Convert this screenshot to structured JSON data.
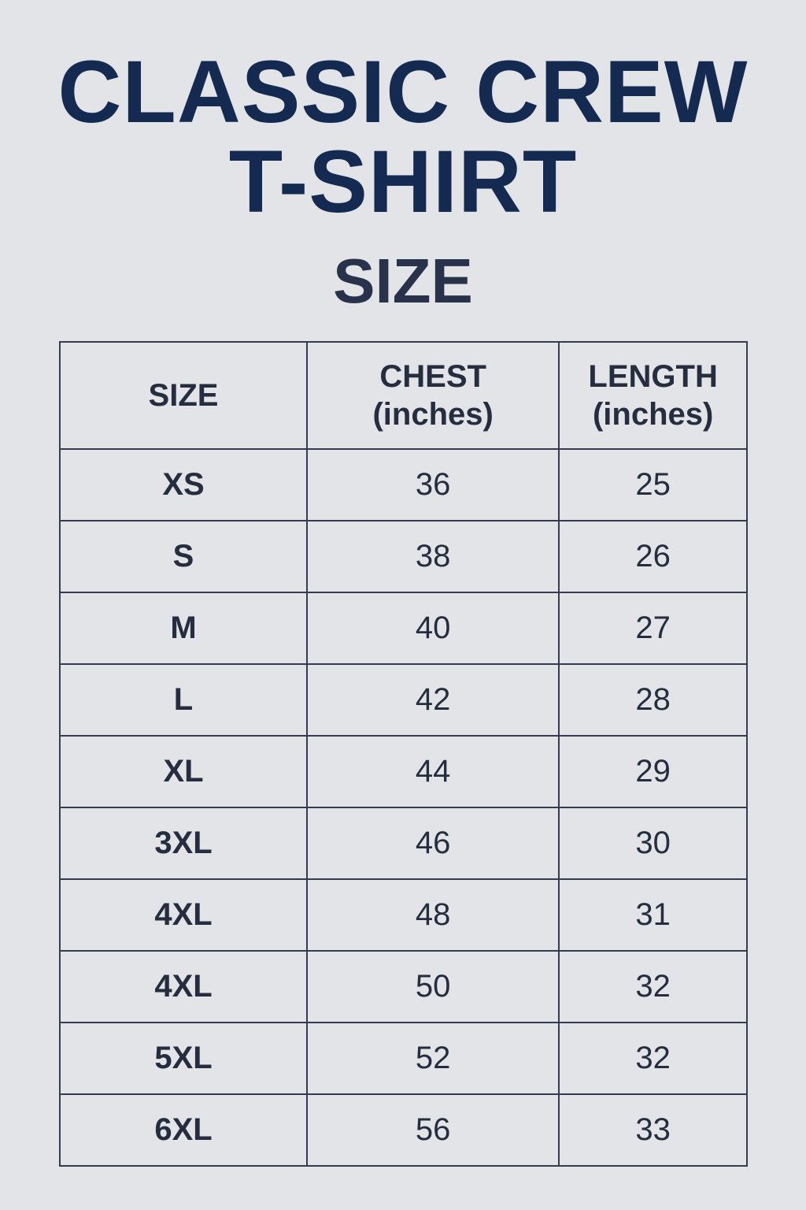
{
  "title_line1": "CLASSIC CREW",
  "title_line2": "T-SHIRT",
  "subtitle": "SIZE",
  "table": {
    "headers": [
      {
        "line1": "SIZE",
        "line2": ""
      },
      {
        "line1": "CHEST",
        "line2": "(inches)"
      },
      {
        "line1": "LENGTH",
        "line2": "(inches)"
      }
    ],
    "rows": [
      {
        "size": "XS",
        "chest": "36",
        "length": "25"
      },
      {
        "size": "S",
        "chest": "38",
        "length": "26"
      },
      {
        "size": "M",
        "chest": "40",
        "length": "27"
      },
      {
        "size": "L",
        "chest": "42",
        "length": "28"
      },
      {
        "size": "XL",
        "chest": "44",
        "length": "29"
      },
      {
        "size": "3XL",
        "chest": "46",
        "length": "30"
      },
      {
        "size": "4XL",
        "chest": "48",
        "length": "31"
      },
      {
        "size": "4XL",
        "chest": "50",
        "length": "32"
      },
      {
        "size": "5XL",
        "chest": "52",
        "length": "32"
      },
      {
        "size": "6XL",
        "chest": "56",
        "length": "33"
      }
    ]
  },
  "colors": {
    "title": "#142a50",
    "text": "#252d3e",
    "background": "#e2e4e8",
    "border": "#363c50"
  }
}
